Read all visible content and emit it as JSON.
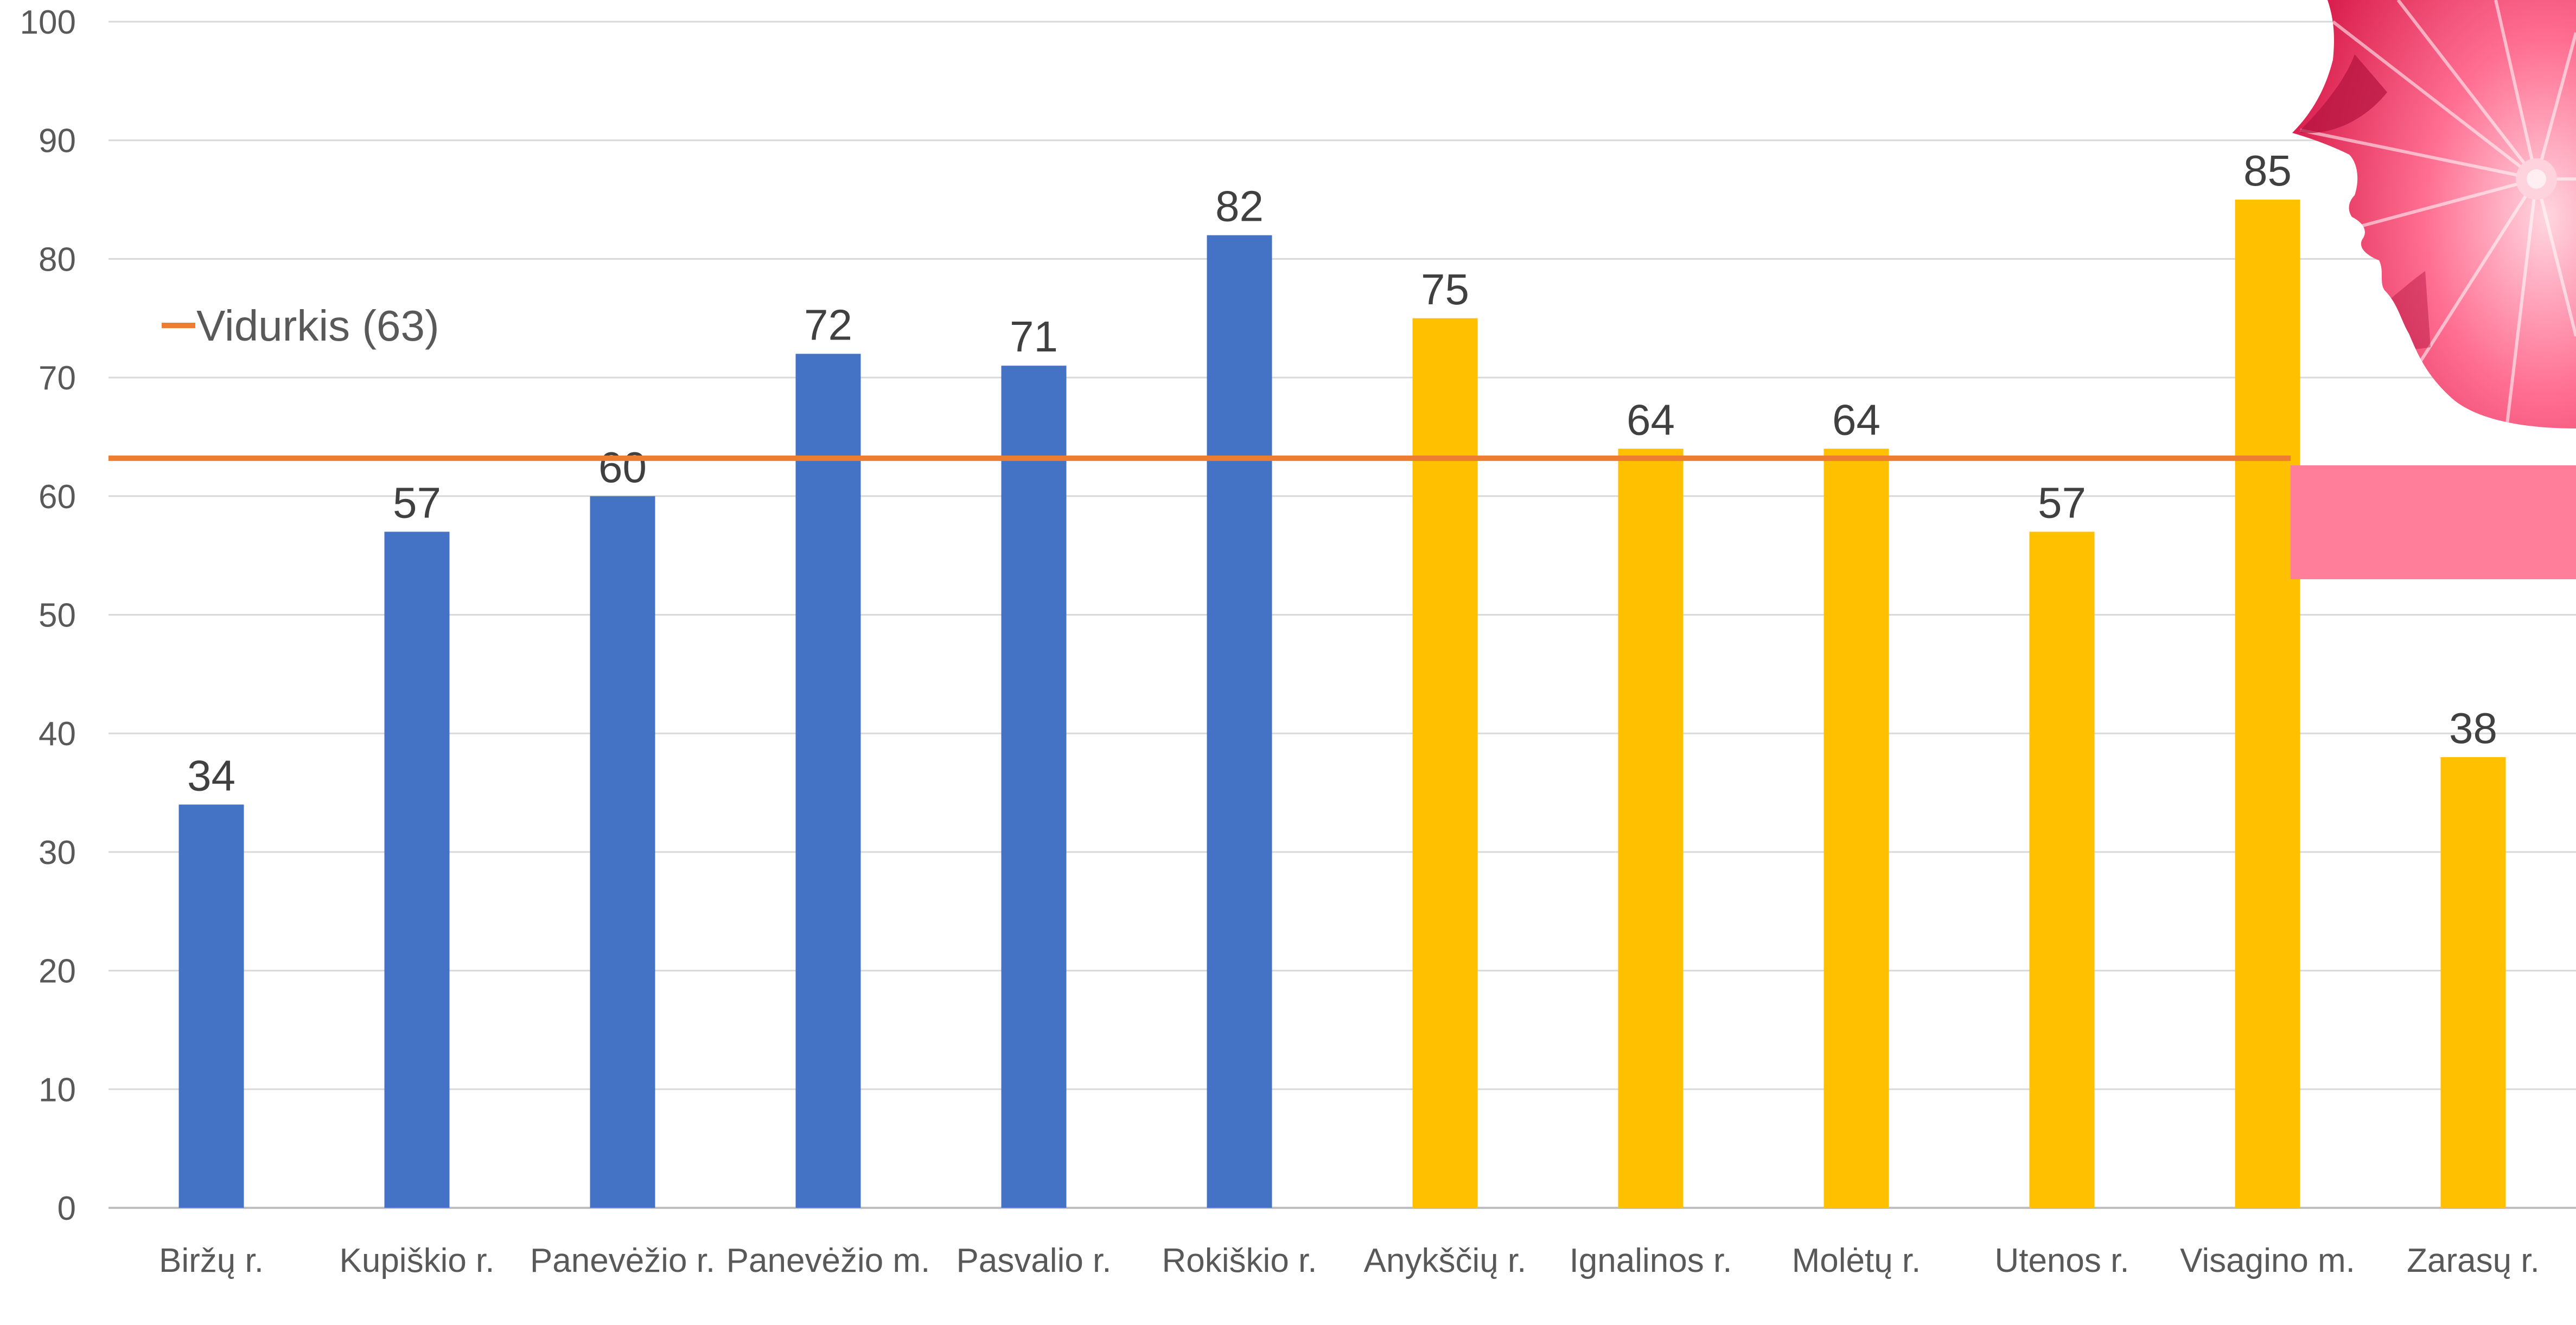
{
  "chart_data": {
    "type": "bar",
    "categories": [
      "Biržų r.",
      "Kupiškio r.",
      "Panevėžio r.",
      "Panevėžio m.",
      "Pasvalio r.",
      "Rokiškio r.",
      "Anykščių r.",
      "Ignalinos r.",
      "Molėtų r.",
      "Utenos r.",
      "Visagino m.",
      "Zarasų r."
    ],
    "values": [
      34,
      57,
      60,
      72,
      71,
      82,
      75,
      64,
      64,
      57,
      85,
      38
    ],
    "data_labels": [
      "34",
      "57",
      "60",
      "72",
      "71",
      "82",
      "75",
      "64",
      "64",
      "57",
      "85",
      "38"
    ],
    "bar_colors": [
      "#4472C4",
      "#4472C4",
      "#4472C4",
      "#4472C4",
      "#4472C4",
      "#4472C4",
      "#FFC000",
      "#FFC000",
      "#FFC000",
      "#FFC000",
      "#FFC000",
      "#FFC000"
    ],
    "ylim": [
      0,
      100
    ],
    "yticks": [
      0,
      10,
      20,
      30,
      40,
      50,
      60,
      70,
      80,
      90,
      100
    ],
    "grid": true,
    "reference_line": {
      "name": "Vidurkis (63)",
      "value": 63.2,
      "color": "#ED7D31"
    },
    "legend_position": "top-left",
    "title": "",
    "xlabel": "",
    "ylabel": ""
  },
  "colors": {
    "grid": "#D9D9D9",
    "axis": "#BFBFBF",
    "decoration_pink": "#FF7F9A",
    "decoration_flower": "#E8325F"
  },
  "decoration": {
    "icon": "flower-face-icon"
  }
}
